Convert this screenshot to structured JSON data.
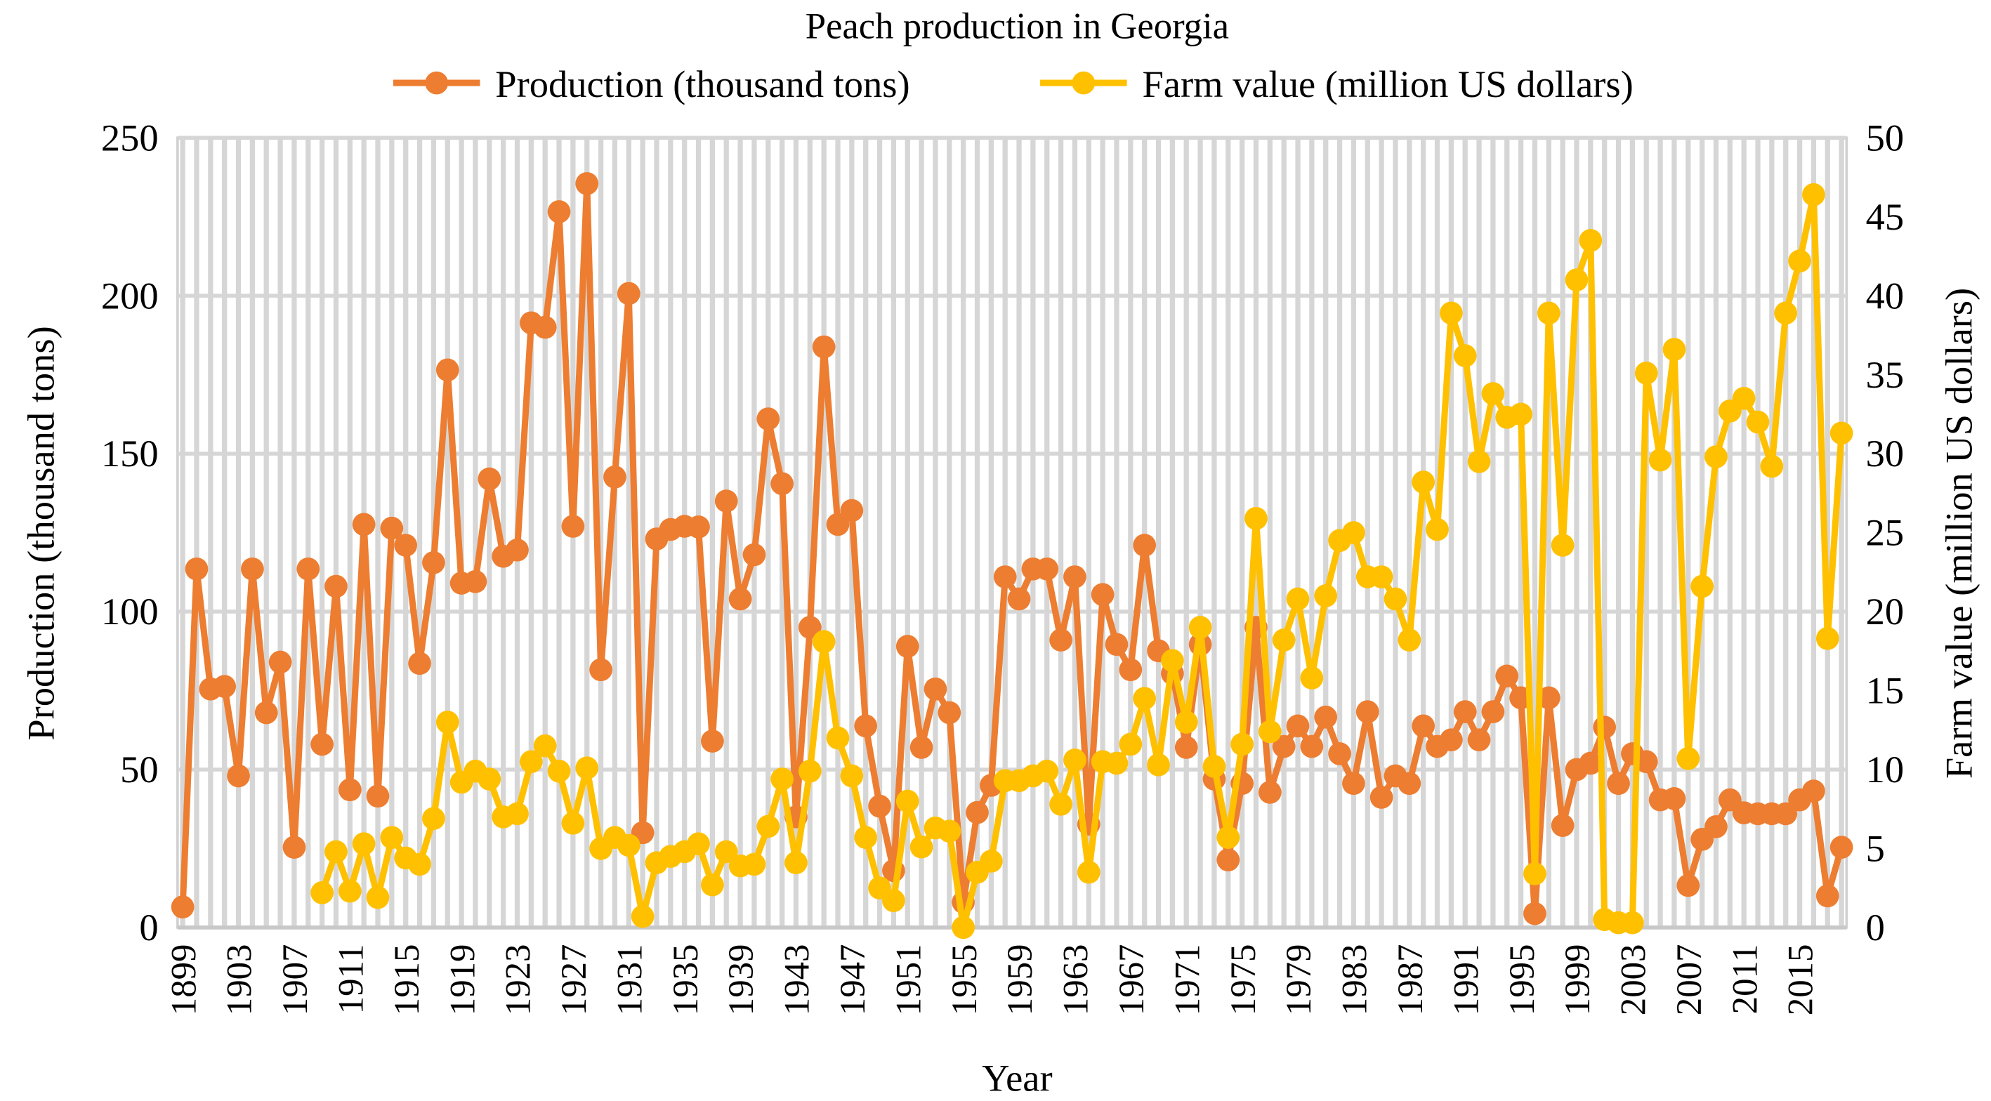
{
  "chart_data": {
    "type": "line",
    "title": "Peach production in Georgia",
    "xlabel": "Year",
    "ylabel_left": "Production (thousand tons)",
    "ylabel_right": "Farm value (million US dollars)",
    "ylim_left": [
      0,
      250
    ],
    "ylim_right": [
      0,
      50
    ],
    "yticks_left": [
      "0",
      "50",
      "100",
      "150",
      "200",
      "250"
    ],
    "yticks_right": [
      "0",
      "5",
      "10",
      "15",
      "20",
      "25",
      "30",
      "35",
      "40",
      "45",
      "50"
    ],
    "xticks": [
      "1899",
      "1903",
      "1907",
      "1911",
      "1915",
      "1919",
      "1923",
      "1927",
      "1931",
      "1935",
      "1939",
      "1943",
      "1947",
      "1951",
      "1955",
      "1959",
      "1963",
      "1967",
      "1971",
      "1975",
      "1979",
      "1983",
      "1987",
      "1991",
      "1995",
      "1999",
      "2003",
      "2007",
      "2011",
      "2015"
    ],
    "grid": true,
    "legend_position": "top",
    "x_start": 1899,
    "x_end": 2018,
    "series": [
      {
        "name": "Production (thousand tons)",
        "axis": "left",
        "color": "#ED7D31",
        "start_year": 1899,
        "values": [
          6.5,
          113.5,
          75.5,
          76.3,
          48,
          113.5,
          68,
          84,
          25.4,
          113.5,
          58,
          108,
          43.6,
          127.6,
          41.6,
          126.4,
          121,
          83.6,
          115.5,
          176.5,
          109,
          109.5,
          142,
          117.5,
          119.5,
          191.4,
          190,
          226.6,
          127,
          235.5,
          81.6,
          142.6,
          200.7,
          30,
          123,
          126,
          127,
          126.8,
          59,
          135,
          104,
          118,
          161,
          140.5,
          35,
          95,
          183.8,
          127.6,
          132,
          63.8,
          38.4,
          18,
          89,
          57,
          75.5,
          68,
          8,
          36.4,
          45,
          111,
          104,
          113.5,
          113.5,
          91,
          111,
          32.7,
          105.4,
          89.6,
          81.6,
          121,
          87.6,
          80.4,
          57,
          89.6,
          47,
          21.4,
          45.6,
          95,
          42.8,
          57.3,
          63.8,
          57.3,
          66.6,
          55,
          45.6,
          68.3,
          41.2,
          48,
          45.6,
          63.8,
          57.3,
          59.4,
          68.3,
          59.4,
          68.3,
          79.6,
          72.7,
          4.4,
          72.7,
          32.3,
          50,
          52,
          63.4,
          45.6,
          55,
          52.5,
          40.4,
          40.8,
          13.3,
          27.9,
          31.9,
          40.4,
          36.3,
          36,
          36,
          36,
          40.4,
          43.2,
          10,
          25.4
        ]
      },
      {
        "name": "Farm value (million US dollars)",
        "axis": "right",
        "color": "#FFC000",
        "start_year": 1909,
        "values": [
          2.2,
          4.8,
          2.3,
          5.3,
          1.9,
          5.7,
          4.4,
          4.0,
          6.9,
          13,
          9.2,
          9.9,
          9.4,
          7.0,
          7.2,
          10.5,
          11.5,
          9.9,
          6.6,
          10.1,
          5.0,
          5.7,
          5.2,
          0.7,
          4.1,
          4.5,
          4.8,
          5.3,
          2.7,
          4.8,
          3.9,
          4.0,
          6.4,
          9.4,
          4.1,
          9.9,
          18.1,
          12,
          9.6,
          5.7,
          2.5,
          1.7,
          8,
          5.1,
          6.3,
          6.1,
          0,
          3.5,
          4.2,
          9.3,
          9.3,
          9.6,
          9.9,
          7.8,
          10.6,
          3.5,
          10.5,
          10.4,
          11.6,
          14.5,
          10.3,
          16.9,
          13,
          19,
          10.2,
          5.7,
          11.6,
          25.9,
          12.4,
          18.2,
          20.8,
          15.8,
          21,
          24.5,
          25,
          22.2,
          22.2,
          20.8,
          18.2,
          28.2,
          25.2,
          38.9,
          36.2,
          29.5,
          33.8,
          32.3,
          32.5,
          3.4,
          38.9,
          24.2,
          41,
          43.5,
          0.5,
          0.3,
          0.3,
          35.1,
          29.6,
          36.6,
          10.7,
          21.6,
          29.8,
          32.7,
          33.5,
          32,
          29.2,
          38.9,
          42.2,
          46.4,
          18.3,
          31.3
        ]
      }
    ]
  }
}
